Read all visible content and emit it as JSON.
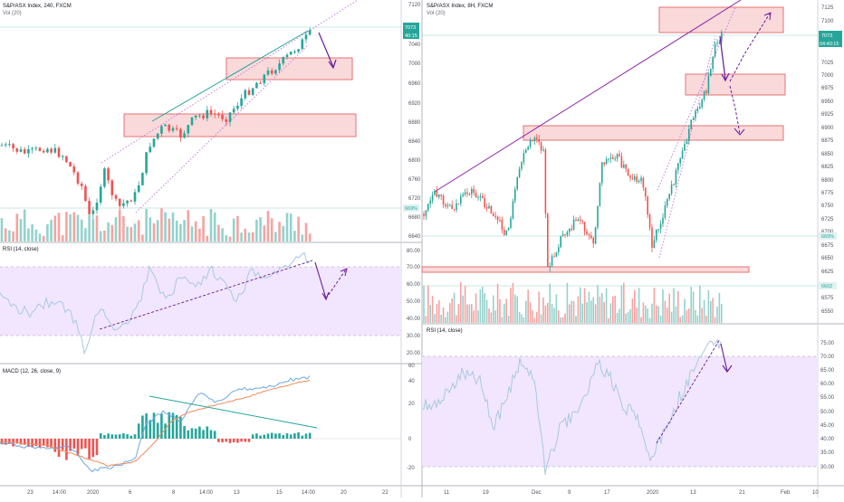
{
  "colors": {
    "up": "#26a69a",
    "down": "#ef5350",
    "vol_up": "#93d2cc",
    "vol_down": "#f5a3a1",
    "rsi_line": "#a9c8df",
    "rsi_band": "#f1e6fd",
    "macd_line": "#6aa8e0",
    "signal_line": "#f08a5d",
    "trend": "#8e24aa",
    "zone_fill": "#f8cfd1",
    "zone_border": "#e57373",
    "price_tag": "#26a69a"
  },
  "left_chart": {
    "title": "S&P/ASX Index, 240, FXCM",
    "vol_label": "Vol (20)",
    "price_axis": [
      "7120",
      "7080",
      "7040",
      "7000",
      "6960",
      "6920",
      "6880",
      "6840",
      "6800",
      "6760",
      "6720",
      "6680",
      "6640"
    ],
    "last_price": "7073",
    "countdown": "40:15",
    "volume_tag": "669%",
    "rsi_label": "RSI (14, close)",
    "rsi_axis": [
      "80.00",
      "70.00",
      "60.00",
      "50.00",
      "40.00",
      "30.00",
      "20.00"
    ],
    "macd_label": "MACD (12, 26, close, 9)",
    "macd_axis": [
      "60",
      "40",
      "20",
      "0",
      "-20"
    ],
    "time_axis": [
      "23",
      "14:00",
      "2020",
      "6",
      "8",
      "14:00",
      "13",
      "15",
      "14:00",
      "20",
      "22"
    ]
  },
  "right_chart": {
    "title": "S&P/ASX Index, 8H, FXCM",
    "vol_label": "Vol (20)",
    "price_axis": [
      "7125",
      "7100",
      "7075",
      "7050",
      "7025",
      "7000",
      "6975",
      "6950",
      "6925",
      "6900",
      "6875",
      "6850",
      "6825",
      "6800",
      "6775",
      "6750",
      "6725",
      "6700",
      "6675",
      "6650",
      "6625",
      "6600",
      "6575",
      "6550"
    ],
    "last_price": "7073",
    "countdown": "04:40:15",
    "volume_tag": "669%",
    "support_tag": "6602",
    "rsi_label": "RSI (14, close)",
    "rsi_axis": [
      "75.00",
      "70.00",
      "65.00",
      "60.00",
      "55.00",
      "50.00",
      "45.00",
      "40.00",
      "35.00",
      "30.00"
    ],
    "time_axis": [
      "11",
      "19",
      "Dec",
      "9",
      "17",
      "2020",
      "13",
      "21",
      "Feb",
      "10"
    ]
  }
}
